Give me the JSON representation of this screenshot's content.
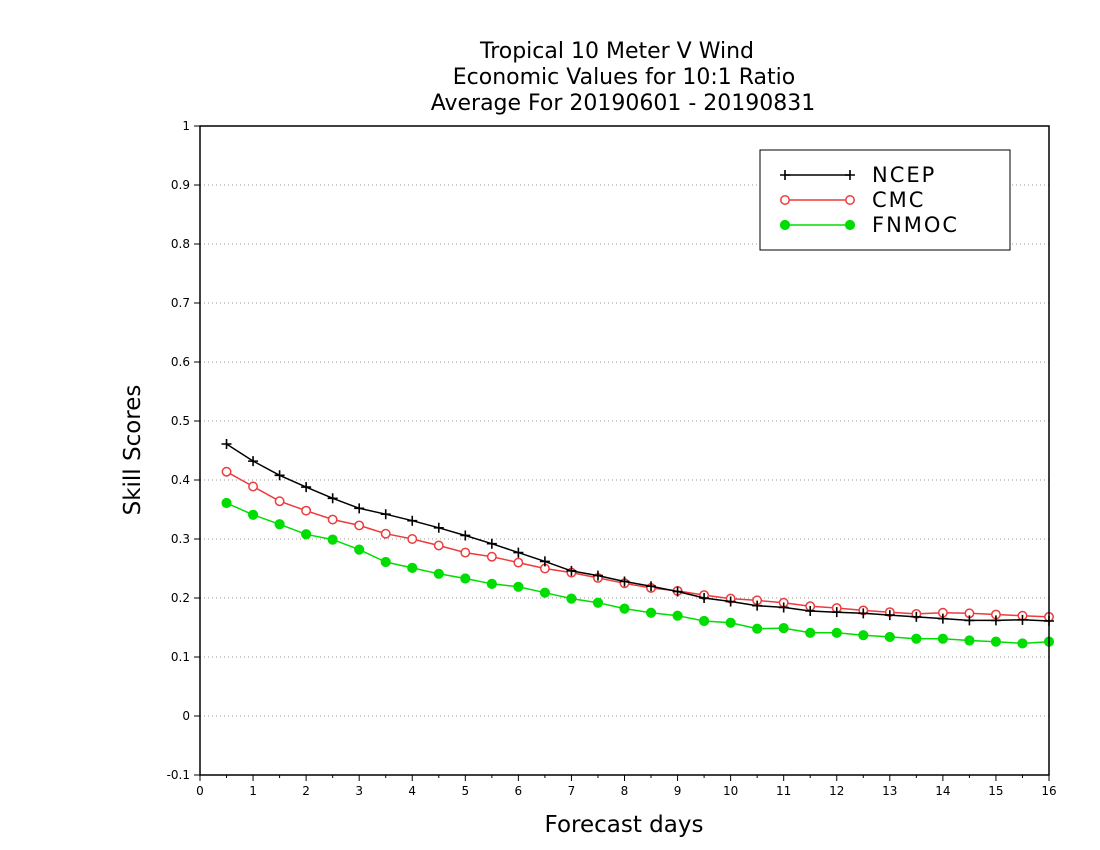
{
  "chart_data": {
    "type": "line",
    "title": [
      "Tropical 10 Meter V Wind",
      "Economic Values for 10:1 Ratio",
      "Average For 20190601 - 20190831"
    ],
    "xlabel": "Forecast days",
    "ylabel": "Skill Scores",
    "xlim": [
      0,
      16
    ],
    "ylim": [
      -0.1,
      1
    ],
    "xticks": [
      0,
      1,
      2,
      3,
      4,
      5,
      6,
      7,
      8,
      9,
      10,
      11,
      12,
      13,
      14,
      15,
      16
    ],
    "xtick_labels": [
      "0",
      "1",
      "2",
      "3",
      "4",
      "5",
      "6",
      "7",
      "8",
      "9",
      "10",
      "11",
      "12",
      "13",
      "14",
      "15",
      "16"
    ],
    "yticks": [
      -0.1,
      0,
      0.1,
      0.2,
      0.3,
      0.4,
      0.5,
      0.6,
      0.7,
      0.8,
      0.9,
      1
    ],
    "ytick_labels": [
      "-0.1",
      "0",
      "0.1",
      "0.2",
      "0.3",
      "0.4",
      "0.5",
      "0.6",
      "0.7",
      "0.8",
      "0.9",
      "1"
    ],
    "grid": true,
    "legend_position": "top-right",
    "x": [
      0.5,
      1,
      1.5,
      2,
      2.5,
      3,
      3.5,
      4,
      4.5,
      5,
      5.5,
      6,
      6.5,
      7,
      7.5,
      8,
      8.5,
      9,
      9.5,
      10,
      10.5,
      11,
      11.5,
      12,
      12.5,
      13,
      13.5,
      14,
      14.5,
      15,
      15.5,
      16
    ],
    "series": [
      {
        "name": "NCEP",
        "color": "#000000",
        "marker": "plus",
        "values": [
          0.461,
          0.432,
          0.408,
          0.388,
          0.369,
          0.352,
          0.342,
          0.331,
          0.319,
          0.306,
          0.292,
          0.277,
          0.262,
          0.246,
          0.238,
          0.228,
          0.22,
          0.211,
          0.2,
          0.194,
          0.187,
          0.184,
          0.178,
          0.176,
          0.174,
          0.171,
          0.168,
          0.165,
          0.162,
          0.162,
          0.163,
          0.161
        ]
      },
      {
        "name": "CMC",
        "color": "#ee3b3b",
        "marker": "open-circle",
        "values": [
          0.414,
          0.389,
          0.364,
          0.348,
          0.333,
          0.323,
          0.309,
          0.3,
          0.289,
          0.277,
          0.27,
          0.26,
          0.25,
          0.243,
          0.234,
          0.225,
          0.217,
          0.212,
          0.205,
          0.199,
          0.196,
          0.192,
          0.186,
          0.183,
          0.179,
          0.176,
          0.173,
          0.175,
          0.174,
          0.172,
          0.17,
          0.168
        ]
      },
      {
        "name": "FNMOC",
        "color": "#00dd00",
        "marker": "filled-circle",
        "values": [
          0.361,
          0.341,
          0.325,
          0.308,
          0.299,
          0.282,
          0.261,
          0.251,
          0.241,
          0.233,
          0.224,
          0.219,
          0.209,
          0.199,
          0.192,
          0.182,
          0.175,
          0.17,
          0.161,
          0.158,
          0.148,
          0.149,
          0.141,
          0.141,
          0.137,
          0.134,
          0.131,
          0.131,
          0.128,
          0.126,
          0.123,
          0.126
        ]
      }
    ]
  }
}
